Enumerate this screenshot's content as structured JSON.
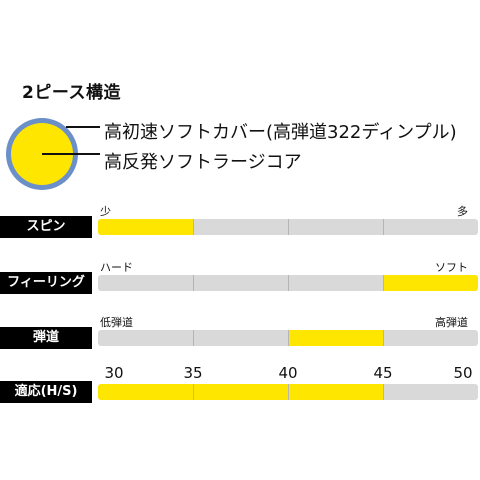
{
  "title": "2ピース構造",
  "ball": {
    "cover_text": "高初速ソフトカバー(高弾道322ディンプル)",
    "core_text": "高反発ソフトラージコア",
    "colors": {
      "core": "#ffe600",
      "cover": "#6b8fc8",
      "line": "#111111"
    }
  },
  "ratings": [
    {
      "label": "スピン",
      "left": "少",
      "right": "多",
      "segment": 1,
      "segments": 4
    },
    {
      "label": "フィーリング",
      "left": "ハード",
      "right": "ソフト",
      "segment": 4,
      "segments": 4
    },
    {
      "label": "弾道",
      "left": "低弾道",
      "right": "高弾道",
      "segment": 3,
      "segments": 4
    }
  ],
  "hs": {
    "label": "適応(H/S)",
    "ticks": [
      "30",
      "35",
      "40",
      "45",
      "50"
    ],
    "range_start": 30,
    "range_end": 45,
    "min": 30,
    "max": 50
  },
  "colors": {
    "highlight": "#ffe600",
    "bar_bg": "#d9d9d9",
    "label_bg": "#000000"
  }
}
